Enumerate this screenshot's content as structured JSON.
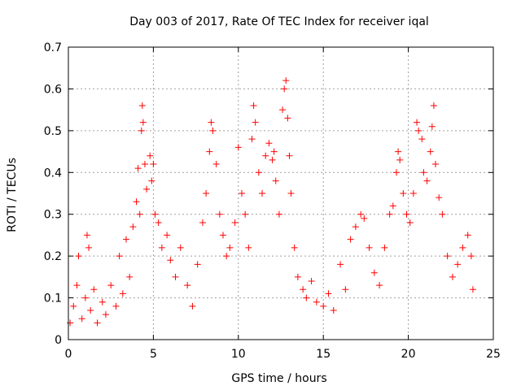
{
  "chart_data": {
    "type": "scatter",
    "title": "Day 003 of 2017, Rate Of TEC Index for receiver iqal",
    "xlabel": "GPS time / hours",
    "ylabel": "ROTI / TECUs",
    "xlim": [
      0,
      25
    ],
    "ylim": [
      0,
      0.7
    ],
    "x_ticks": [
      "0",
      "5",
      "10",
      "15",
      "20",
      "25"
    ],
    "y_ticks": [
      "0",
      "0.1",
      "0.2",
      "0.3",
      "0.4",
      "0.5",
      "0.6",
      "0.7"
    ],
    "grid": true,
    "marker": "+",
    "marker_color": "#ff0000",
    "series": [
      {
        "points": [
          [
            0.1,
            0.04
          ],
          [
            0.3,
            0.08
          ],
          [
            0.5,
            0.13
          ],
          [
            0.6,
            0.2
          ],
          [
            0.8,
            0.05
          ],
          [
            1.0,
            0.1
          ],
          [
            1.1,
            0.25
          ],
          [
            1.2,
            0.22
          ],
          [
            1.3,
            0.07
          ],
          [
            1.5,
            0.12
          ],
          [
            1.7,
            0.04
          ],
          [
            2.0,
            0.09
          ],
          [
            2.2,
            0.06
          ],
          [
            2.5,
            0.13
          ],
          [
            2.8,
            0.08
          ],
          [
            3.0,
            0.2
          ],
          [
            3.2,
            0.11
          ],
          [
            3.4,
            0.24
          ],
          [
            3.6,
            0.15
          ],
          [
            3.8,
            0.27
          ],
          [
            4.0,
            0.33
          ],
          [
            4.1,
            0.41
          ],
          [
            4.2,
            0.3
          ],
          [
            4.3,
            0.5
          ],
          [
            4.35,
            0.56
          ],
          [
            4.4,
            0.52
          ],
          [
            4.5,
            0.42
          ],
          [
            4.6,
            0.36
          ],
          [
            4.8,
            0.44
          ],
          [
            4.9,
            0.38
          ],
          [
            5.0,
            0.42
          ],
          [
            5.1,
            0.3
          ],
          [
            5.3,
            0.28
          ],
          [
            5.5,
            0.22
          ],
          [
            5.8,
            0.25
          ],
          [
            6.0,
            0.19
          ],
          [
            6.3,
            0.15
          ],
          [
            6.6,
            0.22
          ],
          [
            7.0,
            0.13
          ],
          [
            7.3,
            0.08
          ],
          [
            7.6,
            0.18
          ],
          [
            7.9,
            0.28
          ],
          [
            8.1,
            0.35
          ],
          [
            8.3,
            0.45
          ],
          [
            8.4,
            0.52
          ],
          [
            8.5,
            0.5
          ],
          [
            8.7,
            0.42
          ],
          [
            8.9,
            0.3
          ],
          [
            9.1,
            0.25
          ],
          [
            9.3,
            0.2
          ],
          [
            9.5,
            0.22
          ],
          [
            9.8,
            0.28
          ],
          [
            10.0,
            0.46
          ],
          [
            10.2,
            0.35
          ],
          [
            10.4,
            0.3
          ],
          [
            10.6,
            0.22
          ],
          [
            10.8,
            0.48
          ],
          [
            10.9,
            0.56
          ],
          [
            11.0,
            0.52
          ],
          [
            11.2,
            0.4
          ],
          [
            11.4,
            0.35
          ],
          [
            11.6,
            0.44
          ],
          [
            11.8,
            0.47
          ],
          [
            12.0,
            0.43
          ],
          [
            12.1,
            0.45
          ],
          [
            12.2,
            0.38
          ],
          [
            12.4,
            0.3
          ],
          [
            12.6,
            0.55
          ],
          [
            12.7,
            0.6
          ],
          [
            12.8,
            0.62
          ],
          [
            12.9,
            0.53
          ],
          [
            13.0,
            0.44
          ],
          [
            13.1,
            0.35
          ],
          [
            13.3,
            0.22
          ],
          [
            13.5,
            0.15
          ],
          [
            13.8,
            0.12
          ],
          [
            14.0,
            0.1
          ],
          [
            14.3,
            0.14
          ],
          [
            14.6,
            0.09
          ],
          [
            15.0,
            0.08
          ],
          [
            15.3,
            0.11
          ],
          [
            15.6,
            0.07
          ],
          [
            16.0,
            0.18
          ],
          [
            16.3,
            0.12
          ],
          [
            16.6,
            0.24
          ],
          [
            16.9,
            0.27
          ],
          [
            17.2,
            0.3
          ],
          [
            17.4,
            0.29
          ],
          [
            17.7,
            0.22
          ],
          [
            18.0,
            0.16
          ],
          [
            18.3,
            0.13
          ],
          [
            18.6,
            0.22
          ],
          [
            18.9,
            0.3
          ],
          [
            19.1,
            0.32
          ],
          [
            19.3,
            0.4
          ],
          [
            19.4,
            0.45
          ],
          [
            19.5,
            0.43
          ],
          [
            19.7,
            0.35
          ],
          [
            19.9,
            0.3
          ],
          [
            20.1,
            0.28
          ],
          [
            20.3,
            0.35
          ],
          [
            20.5,
            0.52
          ],
          [
            20.6,
            0.5
          ],
          [
            20.8,
            0.48
          ],
          [
            20.9,
            0.4
          ],
          [
            21.1,
            0.38
          ],
          [
            21.3,
            0.45
          ],
          [
            21.4,
            0.51
          ],
          [
            21.5,
            0.56
          ],
          [
            21.6,
            0.42
          ],
          [
            21.8,
            0.34
          ],
          [
            22.0,
            0.3
          ],
          [
            22.3,
            0.2
          ],
          [
            22.6,
            0.15
          ],
          [
            22.9,
            0.18
          ],
          [
            23.2,
            0.22
          ],
          [
            23.5,
            0.25
          ],
          [
            23.7,
            0.2
          ],
          [
            23.8,
            0.12
          ]
        ]
      }
    ]
  }
}
